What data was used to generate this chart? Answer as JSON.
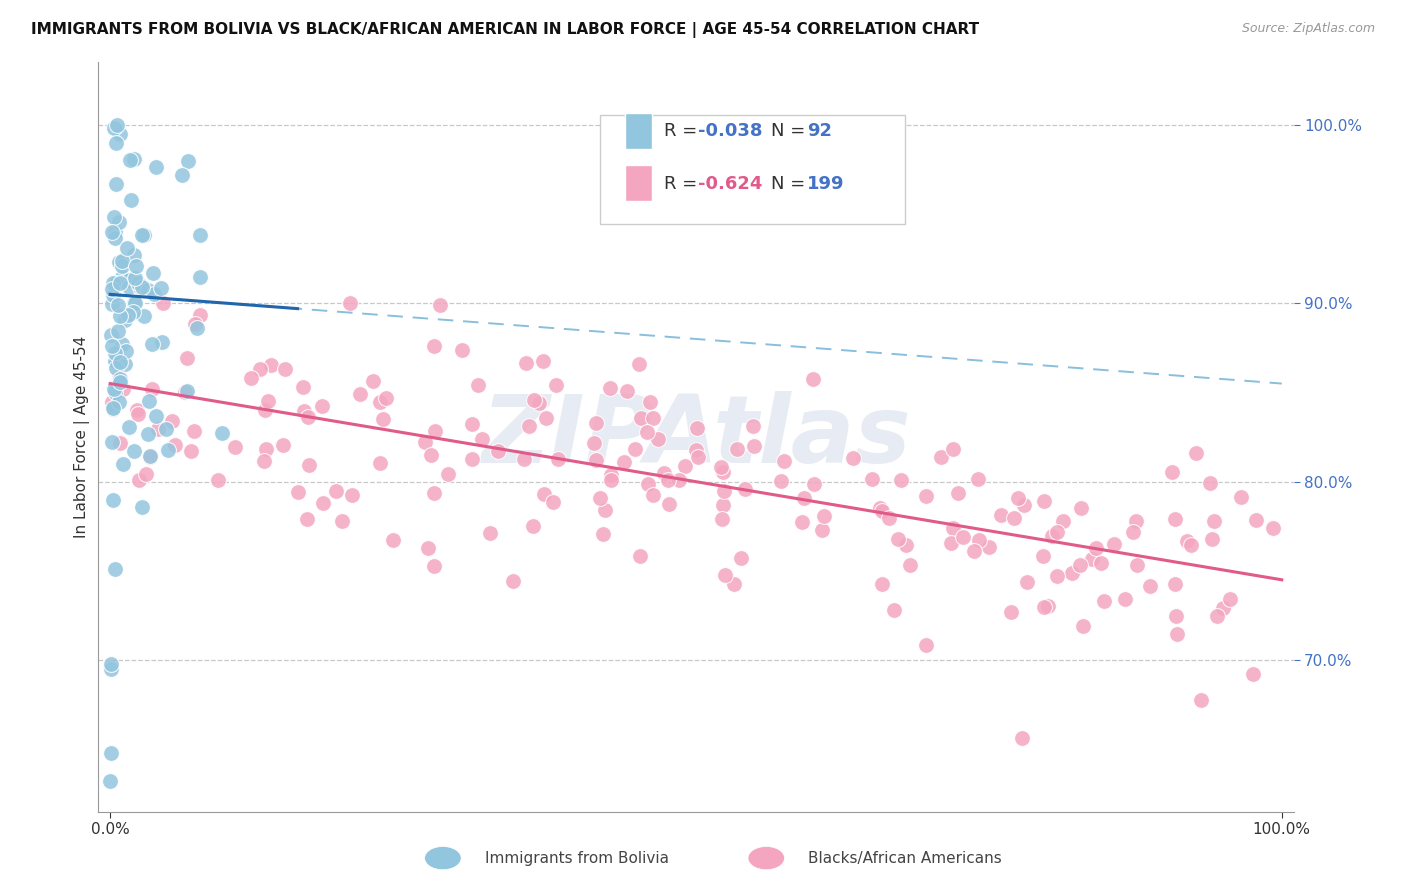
{
  "title": "IMMIGRANTS FROM BOLIVIA VS BLACK/AFRICAN AMERICAN IN LABOR FORCE | AGE 45-54 CORRELATION CHART",
  "source": "Source: ZipAtlas.com",
  "ylabel": "In Labor Force | Age 45-54",
  "color_blue": "#92c5de",
  "color_pink": "#f4a6c0",
  "color_blue_line": "#2166ac",
  "color_pink_line": "#e05a8a",
  "color_blue_dashed": "#92c5de",
  "watermark_text": "ZIPAtlas",
  "blue_N": 92,
  "pink_N": 199,
  "blue_seed": 42,
  "pink_seed": 7
}
